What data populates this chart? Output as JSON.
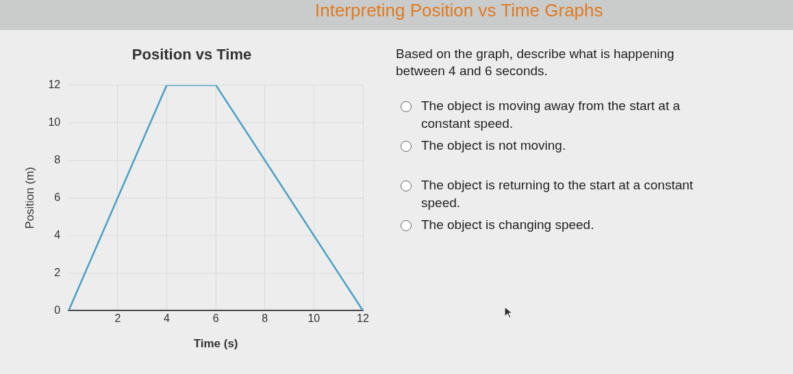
{
  "chart_data": {
    "type": "line",
    "title": "Position vs Time",
    "xlabel": "Time (s)",
    "ylabel": "Position (m)",
    "x": [
      0,
      4,
      6,
      12
    ],
    "series": [
      {
        "color": "#4a9fc6",
        "values": [
          0,
          12,
          12,
          0
        ]
      }
    ],
    "xlim": [
      0,
      12
    ],
    "xticks": [
      2,
      4,
      6,
      8,
      10,
      12
    ],
    "ylim": [
      0,
      12
    ],
    "yticks": [
      0,
      2,
      4,
      6,
      8,
      10,
      12
    ],
    "grid": true,
    "legend": false,
    "marker": "none",
    "line_style": "solid",
    "annotations": [
      "Interpreting Position vs Time Graphs",
      "Based on the graph, describe what is happening between 4 and 6 seconds.",
      "The object is moving away from the start at a constant speed.",
      "The object is not moving.",
      "The object is returning to the start at a constant speed.",
      "The object is changing speed."
    ]
  }
}
